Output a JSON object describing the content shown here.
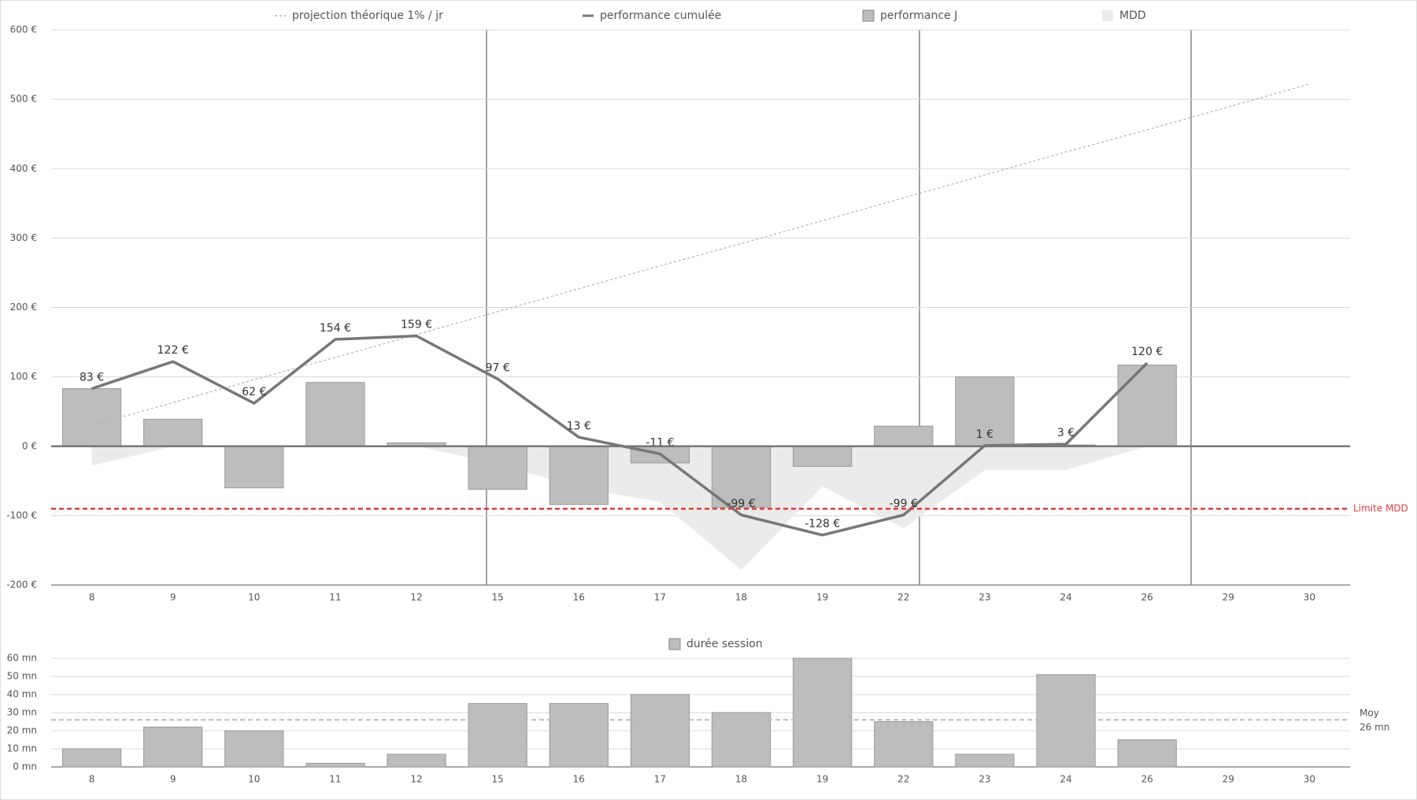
{
  "chart_data": [
    {
      "type": "combo",
      "categories": [
        "8",
        "9",
        "10",
        "11",
        "12",
        "15",
        "16",
        "17",
        "18",
        "19",
        "22",
        "23",
        "24",
        "26",
        "29",
        "30"
      ],
      "ylim": [
        -200,
        600
      ],
      "yticks": [
        {
          "value": -200,
          "label": "-200 €"
        },
        {
          "value": -100,
          "label": "-100 €"
        },
        {
          "value": 0,
          "label": "0 €"
        },
        {
          "value": 100,
          "label": "100 €"
        },
        {
          "value": 200,
          "label": "200 €"
        },
        {
          "value": 300,
          "label": "300 €"
        },
        {
          "value": 400,
          "label": "400 €"
        },
        {
          "value": 500,
          "label": "500 €"
        },
        {
          "value": 600,
          "label": "600 €"
        }
      ],
      "grid": true,
      "series": [
        {
          "name": "projection théorique 1% / jr",
          "type": "line",
          "dash": true,
          "color": "#b0b0b0",
          "values": [
            30,
            63,
            96,
            128,
            161,
            194,
            227,
            260,
            292,
            325,
            358,
            391,
            424,
            456,
            489,
            522
          ]
        },
        {
          "name": "performance cumulée",
          "type": "line",
          "color": "#777777",
          "values": [
            83,
            122,
            62,
            154,
            159,
            97,
            13,
            -11,
            -99,
            -128,
            -99,
            1,
            3,
            120,
            null,
            null
          ],
          "value_labels": [
            "83 €",
            "122 €",
            "62 €",
            "154 €",
            "159 €",
            "97 €",
            "13 €",
            "-11 €",
            "-99 €",
            "-128 €",
            "-99 €",
            "1 €",
            "3 €",
            "120 €",
            null,
            null
          ]
        },
        {
          "name": "performance J",
          "type": "bar",
          "color": "#bdbdbd",
          "values": [
            83,
            39,
            -60,
            92,
            5,
            -62,
            -84,
            -24,
            -88,
            -29,
            29,
            100,
            2,
            117,
            null,
            null
          ]
        },
        {
          "name": "MDD",
          "type": "area",
          "color": "#ebebeb",
          "values": [
            -28,
            0,
            0,
            0,
            0,
            -25,
            -60,
            -80,
            -178,
            -58,
            -118,
            -34,
            -34,
            0,
            null,
            null
          ]
        }
      ],
      "limit": {
        "label": "Limite MDD",
        "value": -90,
        "color": "#e53935"
      }
    },
    {
      "type": "bar",
      "categories": [
        "8",
        "9",
        "10",
        "11",
        "12",
        "15",
        "16",
        "17",
        "18",
        "19",
        "22",
        "23",
        "24",
        "26",
        "29",
        "30"
      ],
      "ylim": [
        0,
        60
      ],
      "yticks": [
        {
          "value": 0,
          "label": "0 mn"
        },
        {
          "value": 10,
          "label": "10 mn"
        },
        {
          "value": 20,
          "label": "20 mn"
        },
        {
          "value": 30,
          "label": "30 mn"
        },
        {
          "value": 40,
          "label": "40 mn"
        },
        {
          "value": 50,
          "label": "50 mn"
        },
        {
          "value": 60,
          "label": "60 mn"
        }
      ],
      "grid": true,
      "series": [
        {
          "name": "durée session",
          "type": "bar",
          "color": "#bdbdbd",
          "values": [
            10,
            22,
            20,
            2,
            7,
            35,
            35,
            40,
            30,
            60,
            25,
            7,
            51,
            15,
            null,
            null
          ]
        }
      ],
      "mean": {
        "name": "Moy",
        "value": 26,
        "label": "26 mn"
      }
    }
  ]
}
